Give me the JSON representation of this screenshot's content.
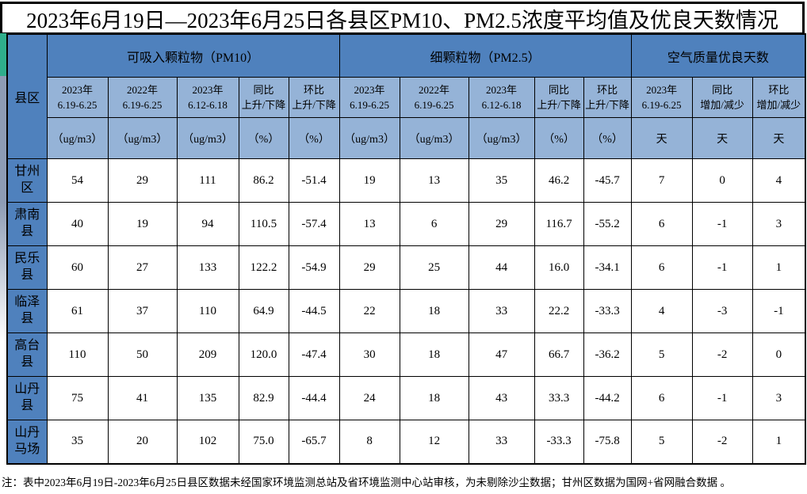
{
  "title": "2023年6月19日—2023年6月25日各县区PM10、PM2.5浓度平均值及优良天数情况",
  "colors": {
    "group_header_blue": "#4f81bd",
    "subheader_blue": "#95b3d7",
    "accent_green": "#2fae8c",
    "border_black": "#000000"
  },
  "table": {
    "corner_header": "县区",
    "groups": [
      {
        "label": "可吸入颗粒物（PM10）",
        "columns": [
          "2023年\n6.19-6.25",
          "2022年\n6.19-6.25",
          "2023年\n6.12-6.18",
          "同比\n上升/下降",
          "环比\n上升/下降"
        ],
        "units": [
          "（ug/m3）",
          "（ug/m3）",
          "（ug/m3）",
          "（%）",
          "（%）"
        ]
      },
      {
        "label": "细颗粒物（PM2.5）",
        "columns": [
          "2023年\n6.19-6.25",
          "2022年\n6.19-6.25",
          "2023年\n6.12-6.18",
          "同比\n上升/下降",
          "环比\n上升/下降"
        ],
        "units": [
          "（ug/m3）",
          "（ug/m3）",
          "（ug/m3）",
          "（%）",
          "（%）"
        ]
      },
      {
        "label": "空气质量优良天数",
        "columns": [
          "2023年\n6.19-6.25",
          "同比\n增加/减少",
          "环比\n增加/减少"
        ],
        "units": [
          "天",
          "天",
          "天"
        ]
      }
    ],
    "rows": [
      {
        "name": "甘州区",
        "values": [
          "54",
          "29",
          "111",
          "86.2",
          "-51.4",
          "19",
          "13",
          "35",
          "46.2",
          "-45.7",
          "7",
          "0",
          "4"
        ]
      },
      {
        "name": "肃南县",
        "values": [
          "40",
          "19",
          "94",
          "110.5",
          "-57.4",
          "13",
          "6",
          "29",
          "116.7",
          "-55.2",
          "6",
          "-1",
          "3"
        ]
      },
      {
        "name": "民乐县",
        "values": [
          "60",
          "27",
          "133",
          "122.2",
          "-54.9",
          "29",
          "25",
          "44",
          "16.0",
          "-34.1",
          "6",
          "-1",
          "1"
        ]
      },
      {
        "name": "临泽县",
        "values": [
          "61",
          "37",
          "110",
          "64.9",
          "-44.5",
          "22",
          "18",
          "33",
          "22.2",
          "-33.3",
          "4",
          "-3",
          "-1"
        ]
      },
      {
        "name": "高台县",
        "values": [
          "110",
          "50",
          "209",
          "120.0",
          "-47.4",
          "30",
          "18",
          "47",
          "66.7",
          "-36.2",
          "5",
          "-2",
          "0"
        ]
      },
      {
        "name": "山丹县",
        "values": [
          "75",
          "41",
          "135",
          "82.9",
          "-44.4",
          "24",
          "18",
          "43",
          "33.3",
          "-44.2",
          "6",
          "-1",
          "3"
        ]
      },
      {
        "name": "山丹马场",
        "values": [
          "35",
          "20",
          "102",
          "75.0",
          "-65.7",
          "8",
          "12",
          "33",
          "-33.3",
          "-75.8",
          "5",
          "-2",
          "1"
        ]
      }
    ]
  },
  "footnote": "注：表中2023年6月19日-2023年6月25日县区数据未经国家环境监测总站及省环境监测中心站审核，为未剔除沙尘数据；甘州区数据为国网+省网融合数据 。"
}
